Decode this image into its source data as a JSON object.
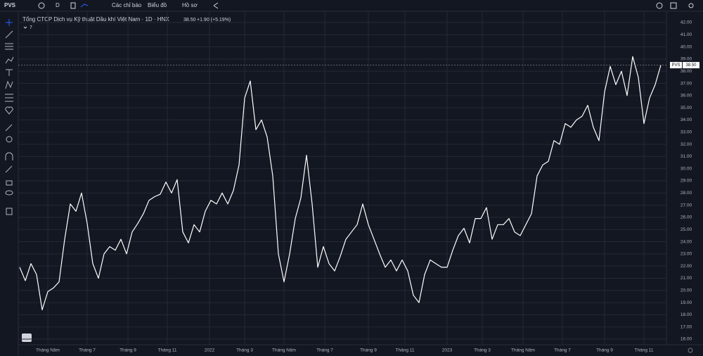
{
  "toolbar": {
    "symbol": "PVS",
    "interval": "D",
    "indicators": "Các chỉ báo",
    "chart_menu": "Biểu đồ",
    "profile": "Hồ sơ"
  },
  "legend": {
    "title": "Tổng CTCP Dịch vụ Kỹ thuật Dầu khí Việt Nam · 1D · HNX",
    "last": "38.50",
    "change": "+1.90 (+5.19%)",
    "collapse": "7"
  },
  "chart_data": {
    "type": "line",
    "color": "#ffffff",
    "grid": true,
    "values": [
      21.9,
      20.8,
      22.2,
      21.3,
      18.4,
      19.9,
      20.2,
      20.7,
      24.2,
      27.1,
      26.5,
      28.0,
      25.5,
      22.2,
      21.0,
      23.0,
      23.6,
      23.3,
      24.2,
      23.0,
      24.8,
      25.5,
      26.3,
      27.4,
      27.7,
      27.9,
      28.9,
      28.0,
      29.1,
      24.8,
      23.9,
      25.4,
      24.8,
      26.5,
      27.4,
      27.1,
      28.0,
      27.1,
      28.2,
      30.3,
      35.8,
      37.2,
      33.2,
      34.0,
      32.6,
      29.4,
      23.0,
      20.7,
      23.0,
      25.9,
      27.6,
      31.1,
      27.1,
      21.9,
      23.6,
      22.2,
      21.6,
      22.8,
      24.2,
      24.8,
      25.4,
      27.1,
      25.4,
      24.2,
      23.0,
      21.9,
      22.5,
      21.6,
      22.5,
      21.6,
      19.6,
      19.0,
      21.3,
      22.5,
      22.2,
      21.9,
      21.9,
      23.3,
      24.5,
      25.1,
      23.9,
      25.9,
      25.9,
      26.8,
      24.2,
      25.4,
      25.4,
      25.9,
      24.8,
      24.5,
      25.4,
      26.3,
      29.4,
      30.3,
      30.6,
      32.3,
      32.0,
      33.7,
      33.4,
      34.0,
      34.3,
      35.2,
      33.4,
      32.3,
      36.3,
      38.4,
      36.9,
      38.0,
      36.0,
      39.2,
      37.5,
      33.7,
      35.8,
      36.9,
      38.5
    ],
    "xlim": [
      0,
      114
    ],
    "xticks": [
      {
        "value": 5,
        "label": "Tháng Năm"
      },
      {
        "value": 12,
        "label": "Tháng 7"
      },
      {
        "value": 19.25,
        "label": "Tháng 9"
      },
      {
        "value": 26.25,
        "label": "Tháng 11"
      },
      {
        "value": 33.75,
        "label": "2022"
      },
      {
        "value": 40,
        "label": "Tháng 3"
      },
      {
        "value": 47,
        "label": "Tháng Năm"
      },
      {
        "value": 54.25,
        "label": "Tháng 7"
      },
      {
        "value": 62,
        "label": "Tháng 9"
      },
      {
        "value": 68.5,
        "label": "Tháng 11"
      },
      {
        "value": 76,
        "label": "2023"
      },
      {
        "value": 82.25,
        "label": "Tháng 3"
      },
      {
        "value": 89.5,
        "label": "Tháng Năm"
      },
      {
        "value": 96.5,
        "label": "Tháng 7"
      },
      {
        "value": 104,
        "label": "Tháng 9"
      },
      {
        "value": 111,
        "label": "Tháng 11"
      }
    ],
    "ylim": [
      16,
      42
    ],
    "yticks": [
      {
        "value": 16,
        "label": "16.00"
      },
      {
        "value": 17,
        "label": "17.00"
      },
      {
        "value": 18,
        "label": "18.00"
      },
      {
        "value": 19,
        "label": "19.00"
      },
      {
        "value": 20,
        "label": "20.00"
      },
      {
        "value": 21,
        "label": "21.00"
      },
      {
        "value": 22,
        "label": "22.00"
      },
      {
        "value": 23,
        "label": "23.00"
      },
      {
        "value": 24,
        "label": "24.00"
      },
      {
        "value": 25,
        "label": "25.00"
      },
      {
        "value": 26,
        "label": "26.00"
      },
      {
        "value": 27,
        "label": "27.00"
      },
      {
        "value": 28,
        "label": "28.00"
      },
      {
        "value": 29,
        "label": "29.00"
      },
      {
        "value": 30,
        "label": "30.00"
      },
      {
        "value": 31,
        "label": "31.00"
      },
      {
        "value": 32,
        "label": "32.00"
      },
      {
        "value": 33,
        "label": "33.00"
      },
      {
        "value": 34,
        "label": "34.00"
      },
      {
        "value": 35,
        "label": "35.00"
      },
      {
        "value": 36,
        "label": "36.00"
      },
      {
        "value": 37,
        "label": "37.00"
      },
      {
        "value": 38,
        "label": "38.00"
      },
      {
        "value": 39,
        "label": "39.00"
      },
      {
        "value": 40,
        "label": "40.00"
      },
      {
        "value": 41,
        "label": "41.00"
      },
      {
        "value": 42,
        "label": "42.00"
      }
    ],
    "price_tag": {
      "name": "PVS",
      "value": 38.5,
      "label": "38.50"
    }
  }
}
